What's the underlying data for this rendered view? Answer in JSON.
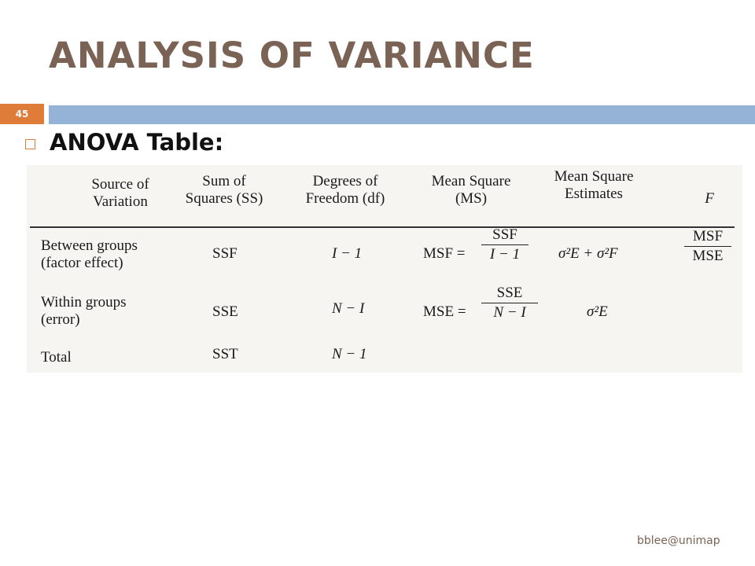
{
  "slide": {
    "title": "ANALYSIS OF VARIANCE",
    "number": "45",
    "bullet": "ANOVA Table:",
    "footer": "bblee@unimap",
    "colors": {
      "title": "#7a6254",
      "badge": "#e07c3a",
      "bar": "#94b3d6"
    }
  },
  "table": {
    "headers": [
      [
        "Source of",
        "Variation"
      ],
      [
        "Sum of",
        "Squares (SS)"
      ],
      [
        "Degrees of",
        "Freedom (df)"
      ],
      [
        "Mean Square",
        "(MS)"
      ],
      [
        "Mean Square",
        "Estimates"
      ],
      [
        "F"
      ]
    ],
    "rows": [
      {
        "source": [
          "Between groups",
          "(factor effect)"
        ],
        "ss": "SSF",
        "df": "I − 1",
        "ms_label": "MSF =",
        "ms_num": "SSF",
        "ms_den": "I − 1",
        "est": "σ²E + σ²F",
        "f_num": "MSF",
        "f_den": "MSE"
      },
      {
        "source": [
          "Within groups",
          "(error)"
        ],
        "ss": "SSE",
        "df": "N − I",
        "ms_label": "MSE =",
        "ms_num": "SSE",
        "ms_den": "N − I",
        "est": "σ²E"
      },
      {
        "source": [
          "Total"
        ],
        "ss": "SST",
        "df": "N − 1"
      }
    ]
  }
}
